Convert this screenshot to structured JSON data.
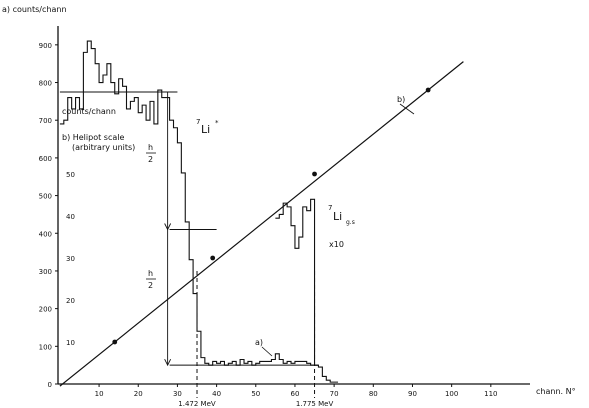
{
  "chart_data": {
    "type": "line",
    "title": "",
    "xlabel": "chann. N°",
    "ylabel_left": "a) counts/chann",
    "ylabel_inner": "counts/chann",
    "y2label_line1": "b) Helipot scale",
    "y2label_line2": "(arbitrary units)",
    "xlim": [
      0,
      120
    ],
    "ylim": [
      0,
      950
    ],
    "y2lim": [
      0,
      80
    ],
    "x_ticks": [
      {
        "value": 10,
        "label": "10"
      },
      {
        "value": 20,
        "label": "20"
      },
      {
        "value": 30,
        "label": "30"
      },
      {
        "value": 40,
        "label": "40"
      },
      {
        "value": 50,
        "label": "50"
      },
      {
        "value": 60,
        "label": "60"
      },
      {
        "value": 70,
        "label": "70"
      },
      {
        "value": 80,
        "label": "80"
      },
      {
        "value": 90,
        "label": "90"
      },
      {
        "value": 100,
        "label": "100"
      },
      {
        "value": 110,
        "label": "110"
      }
    ],
    "y_ticks": [
      {
        "value": 0,
        "label": "0"
      },
      {
        "value": 100,
        "label": "100"
      },
      {
        "value": 200,
        "label": "200"
      },
      {
        "value": 300,
        "label": "300"
      },
      {
        "value": 400,
        "label": "400"
      },
      {
        "value": 500,
        "label": "500"
      },
      {
        "value": 600,
        "label": "600"
      },
      {
        "value": 700,
        "label": "700"
      },
      {
        "value": 800,
        "label": "800"
      },
      {
        "value": 900,
        "label": "900"
      }
    ],
    "y2_ticks": [
      {
        "value": 10,
        "label": "10"
      },
      {
        "value": 20,
        "label": "20"
      },
      {
        "value": 30,
        "label": "30"
      },
      {
        "value": 40,
        "label": "40"
      },
      {
        "value": 50,
        "label": "50"
      }
    ],
    "series": [
      {
        "name": "a)",
        "style": "step",
        "points": [
          [
            0,
            690
          ],
          [
            1,
            700
          ],
          [
            2,
            760
          ],
          [
            3,
            730
          ],
          [
            4,
            760
          ],
          [
            5,
            730
          ],
          [
            6,
            880
          ],
          [
            7,
            910
          ],
          [
            8,
            890
          ],
          [
            9,
            850
          ],
          [
            10,
            800
          ],
          [
            11,
            820
          ],
          [
            12,
            850
          ],
          [
            13,
            800
          ],
          [
            14,
            770
          ],
          [
            15,
            810
          ],
          [
            16,
            790
          ],
          [
            17,
            730
          ],
          [
            18,
            750
          ],
          [
            19,
            760
          ],
          [
            20,
            720
          ],
          [
            21,
            740
          ],
          [
            22,
            700
          ],
          [
            23,
            750
          ],
          [
            24,
            690
          ],
          [
            25,
            780
          ],
          [
            26,
            760
          ],
          [
            27,
            760
          ],
          [
            28,
            700
          ],
          [
            29,
            680
          ],
          [
            30,
            640
          ],
          [
            31,
            560
          ],
          [
            32,
            430
          ],
          [
            33,
            330
          ],
          [
            34,
            240
          ],
          [
            35,
            140
          ],
          [
            36,
            70
          ],
          [
            37,
            55
          ],
          [
            38,
            50
          ],
          [
            39,
            60
          ],
          [
            40,
            55
          ],
          [
            41,
            60
          ],
          [
            42,
            50
          ],
          [
            43,
            55
          ],
          [
            44,
            60
          ],
          [
            45,
            50
          ],
          [
            46,
            65
          ],
          [
            47,
            55
          ],
          [
            48,
            60
          ],
          [
            49,
            50
          ],
          [
            50,
            55
          ],
          [
            51,
            60
          ],
          [
            52,
            60
          ],
          [
            53,
            60
          ],
          [
            54,
            65
          ],
          [
            55,
            80
          ],
          [
            56,
            65
          ],
          [
            57,
            55
          ],
          [
            58,
            60
          ],
          [
            59,
            55
          ],
          [
            60,
            60
          ],
          [
            61,
            60
          ],
          [
            62,
            60
          ],
          [
            63,
            55
          ],
          [
            64,
            50
          ],
          [
            65,
            50
          ],
          [
            66,
            45
          ],
          [
            67,
            20
          ],
          [
            68,
            10
          ],
          [
            69,
            5
          ],
          [
            70,
            5
          ]
        ]
      },
      {
        "name": "",
        "style": "step",
        "points": [
          [
            55,
            440
          ],
          [
            56,
            450
          ],
          [
            57,
            480
          ],
          [
            58,
            470
          ],
          [
            59,
            420
          ],
          [
            60,
            360
          ],
          [
            61,
            390
          ],
          [
            62,
            470
          ],
          [
            63,
            460
          ],
          [
            64,
            490
          ],
          [
            65,
            50
          ]
        ]
      },
      {
        "name": "b)",
        "style": "line",
        "axis": "y2",
        "x": [
          14,
          39,
          65,
          94
        ],
        "y": [
          10,
          30,
          50,
          70
        ]
      }
    ],
    "reference_lines": [
      {
        "axis": "y",
        "value": 775,
        "x_from": 0,
        "x_to": 30
      },
      {
        "axis": "y",
        "value": 410,
        "x_from": 28,
        "x_to": 40
      },
      {
        "axis": "y",
        "value": 50,
        "x_from": 28,
        "x_to": 65
      }
    ],
    "dashed_verticals": [
      {
        "x": 35,
        "label": "1.472 MeV"
      },
      {
        "x": 65,
        "label": "1.775 MeV"
      }
    ],
    "annotations": {
      "half_label_num": "h",
      "half_label_den": "2",
      "li_excited_sup": "7",
      "li_excited_base": "Li",
      "li_excited_star": "*",
      "li_gs_sup": "7",
      "li_gs_base": "Li",
      "li_gs_sub": "g.s",
      "li_gs_scale": "x10",
      "series_a_label": "a)",
      "series_b_label": "b)"
    },
    "grid": false,
    "legend": "none"
  }
}
